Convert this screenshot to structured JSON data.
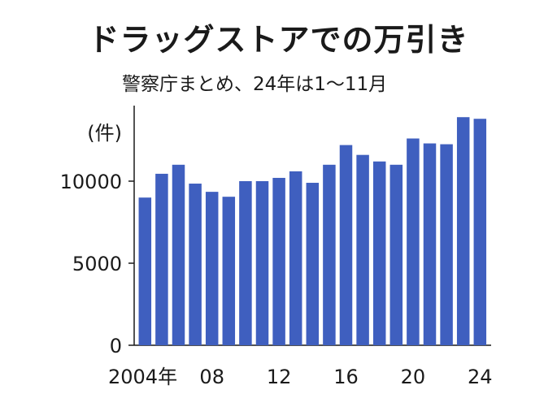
{
  "chart_data": {
    "type": "bar",
    "title": "ドラッグストアでの万引き",
    "subtitle": "警察庁まとめ、24年は1～11月",
    "ylabel": "(件)",
    "ylim": [
      0,
      14000
    ],
    "yticks": [
      0,
      5000,
      10000
    ],
    "categories": [
      "2004",
      "2005",
      "2006",
      "2007",
      "2008",
      "2009",
      "2010",
      "2011",
      "2012",
      "2013",
      "2014",
      "2015",
      "2016",
      "2017",
      "2018",
      "2019",
      "2020",
      "2021",
      "2022",
      "2023",
      "2024"
    ],
    "xtick_labels": [
      {
        "year": "2004",
        "label": "2004年"
      },
      {
        "year": "2008",
        "label": "08"
      },
      {
        "year": "2012",
        "label": "12"
      },
      {
        "year": "2016",
        "label": "16"
      },
      {
        "year": "2020",
        "label": "20"
      },
      {
        "year": "2024",
        "label": "24"
      }
    ],
    "values": [
      9000,
      10450,
      11000,
      9850,
      9350,
      9050,
      10000,
      10000,
      10200,
      10600,
      9900,
      11000,
      12200,
      11600,
      11200,
      11000,
      12600,
      12300,
      12250,
      13900,
      13800
    ],
    "colors": {
      "bar": "#3f5fbf",
      "axis": "#1a1a1a"
    }
  }
}
